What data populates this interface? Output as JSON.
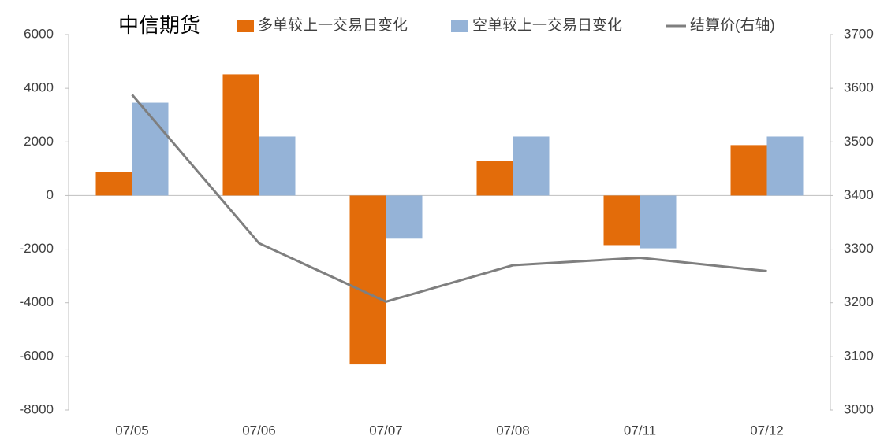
{
  "chart_data": {
    "type": "bar",
    "title": "中信期货",
    "categories": [
      "07/05",
      "07/06",
      "07/07",
      "07/08",
      "07/11",
      "07/12"
    ],
    "series": [
      {
        "name": "多单较上一交易日变化",
        "type": "bar",
        "color": "#e36c0a",
        "values": [
          870,
          4520,
          -6300,
          1300,
          -1850,
          1880
        ]
      },
      {
        "name": "空单较上一交易日变化",
        "type": "bar",
        "color": "#95b3d7",
        "values": [
          3460,
          2200,
          -1610,
          2200,
          -1970,
          2200
        ]
      },
      {
        "name": "结算价(右轴)",
        "type": "line",
        "axis": "y2",
        "color": "#7f7f7f",
        "values": [
          3588,
          3311,
          3202,
          3270,
          3284,
          3259
        ]
      }
    ],
    "ylim": [
      -8000,
      6000
    ],
    "yticks": [
      -8000,
      -6000,
      -4000,
      -2000,
      0,
      2000,
      4000,
      6000
    ],
    "y2lim": [
      3000,
      3700
    ],
    "y2ticks": [
      3000,
      3100,
      3200,
      3300,
      3400,
      3500,
      3600,
      3700
    ],
    "grid": false
  }
}
